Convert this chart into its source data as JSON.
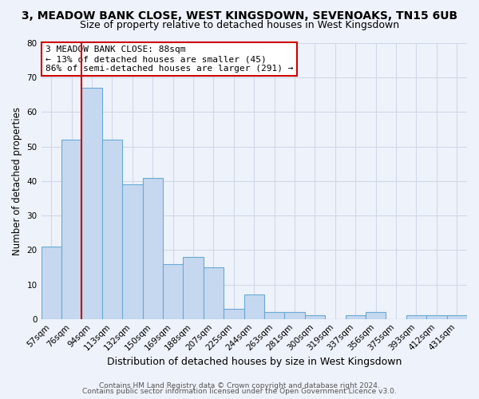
{
  "title": "3, MEADOW BANK CLOSE, WEST KINGSDOWN, SEVENOAKS, TN15 6UB",
  "subtitle": "Size of property relative to detached houses in West Kingsdown",
  "xlabel": "Distribution of detached houses by size in West Kingsdown",
  "ylabel": "Number of detached properties",
  "bin_labels": [
    "57sqm",
    "76sqm",
    "94sqm",
    "113sqm",
    "132sqm",
    "150sqm",
    "169sqm",
    "188sqm",
    "207sqm",
    "225sqm",
    "244sqm",
    "263sqm",
    "281sqm",
    "300sqm",
    "319sqm",
    "337sqm",
    "356sqm",
    "375sqm",
    "393sqm",
    "412sqm",
    "431sqm"
  ],
  "bar_values": [
    21,
    52,
    67,
    52,
    39,
    41,
    16,
    18,
    15,
    3,
    7,
    2,
    2,
    1,
    0,
    1,
    2,
    0,
    1,
    1,
    1
  ],
  "bar_color": "#c5d8f0",
  "bar_edgecolor": "#6aaad4",
  "bar_linewidth": 0.8,
  "vline_color": "#cc0000",
  "annotation_text": "3 MEADOW BANK CLOSE: 88sqm\n← 13% of detached houses are smaller (45)\n86% of semi-detached houses are larger (291) →",
  "annotation_box_color": "#ffffff",
  "annotation_box_edgecolor": "#cc0000",
  "ylim": [
    0,
    80
  ],
  "yticks": [
    0,
    10,
    20,
    30,
    40,
    50,
    60,
    70,
    80
  ],
  "background_color": "#eef2fa",
  "grid_color": "#d0d8e8",
  "footer_line1": "Contains HM Land Registry data © Crown copyright and database right 2024.",
  "footer_line2": "Contains public sector information licensed under the Open Government Licence v3.0.",
  "title_fontsize": 10,
  "subtitle_fontsize": 9,
  "xlabel_fontsize": 9,
  "ylabel_fontsize": 8.5,
  "tick_fontsize": 7.5,
  "annotation_fontsize": 8,
  "footer_fontsize": 6.5
}
